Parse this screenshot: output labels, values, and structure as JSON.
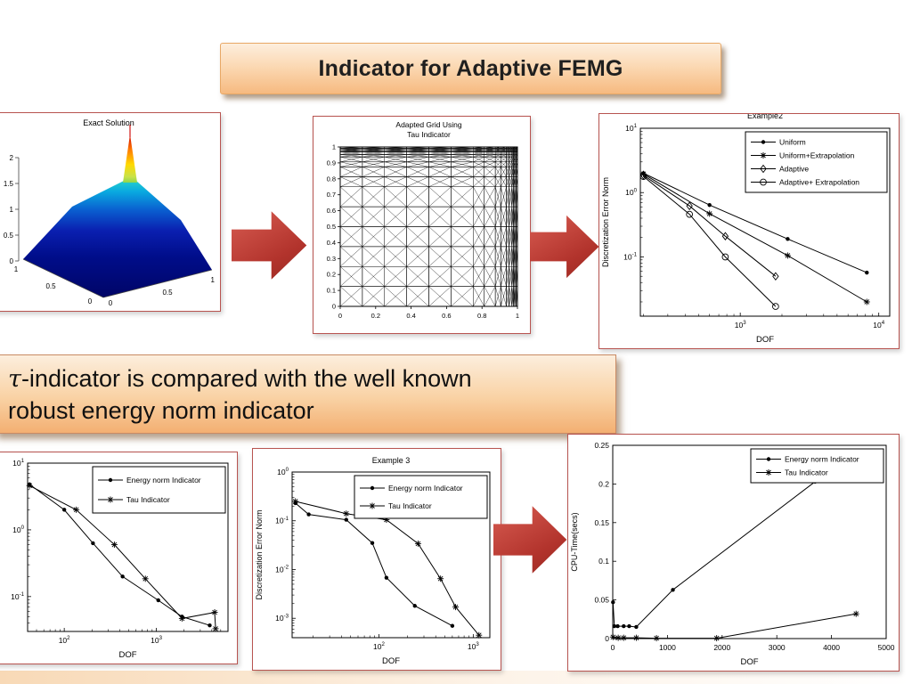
{
  "header": {
    "title": "Indicator for Adaptive FEMG"
  },
  "caption": {
    "tau": "τ",
    "line1_rest": "-indicator is compared with the well known",
    "line2": "robust energy norm indicator"
  },
  "colors": {
    "arrow_red": "#b2332c",
    "panel_border": "#b85450",
    "banner_gradient_top": "#fdeedd",
    "banner_gradient_bottom": "#f6ba80",
    "plot_line": "#000000",
    "surface_low": "#000566",
    "surface_peak": "#cc0000"
  },
  "chart_data": [
    {
      "id": "exact_solution",
      "type": "surface",
      "title": "Exact Solution",
      "zticks": [
        "0",
        "0.5",
        "1",
        "1.5",
        "2"
      ],
      "left_edge_ticks": [
        "1",
        "0.5",
        "0"
      ],
      "right_edge_ticks": [
        "0",
        "0.5",
        "1"
      ],
      "zlim": [
        0,
        2
      ],
      "description": "3D surface over unit square, flat near zero with sharp corner-singularity spike rising to 2"
    },
    {
      "id": "adapted_grid",
      "type": "mesh",
      "title_line1": "Adapted Grid Using",
      "title_line2": "Tau Indicator",
      "xticks": [
        "0",
        "0.2",
        "0.4",
        "0.6",
        "0.8",
        "1"
      ],
      "yticks": [
        "0",
        "0.1",
        "0.2",
        "0.3",
        "0.4",
        "0.5",
        "0.6",
        "0.7",
        "0.8",
        "0.9",
        "1"
      ],
      "refinement": "criss-cross triangular mesh graded strongly toward the top-right corner"
    },
    {
      "id": "example2",
      "type": "line",
      "title": "Example2",
      "title_clipped": true,
      "xlabel": "DOF",
      "ylabel": "Discretization Error Norm",
      "xscale": "log",
      "yscale": "log",
      "xlim": [
        190,
        12000
      ],
      "ylim": [
        0.012,
        10
      ],
      "xticks": {
        "values": [
          1000,
          10000
        ],
        "labels": [
          "10^3",
          "10^4"
        ]
      },
      "yticks": {
        "values": [
          10,
          1,
          0.1
        ],
        "labels": [
          "10^1",
          "10^0",
          "10^-1"
        ]
      },
      "legend": {
        "position": "top-right",
        "entry_h": 15
      },
      "series": [
        {
          "name": "Uniform",
          "marker": "dot",
          "x": [
            200,
            600,
            2200,
            8200
          ],
          "y": [
            2.0,
            0.64,
            0.19,
            0.057
          ]
        },
        {
          "name": "Uniform+Extrapolation",
          "marker": "asterisk",
          "x": [
            200,
            600,
            2200,
            8200
          ],
          "y": [
            1.95,
            0.47,
            0.105,
            0.02
          ]
        },
        {
          "name": "Adaptive",
          "marker": "diamond",
          "x": [
            200,
            430,
            780,
            1800
          ],
          "y": [
            1.85,
            0.62,
            0.21,
            0.05
          ]
        },
        {
          "name": "Adaptive+ Extrapolation",
          "marker": "circle",
          "x": [
            200,
            430,
            780,
            1800
          ],
          "y": [
            1.78,
            0.46,
            0.1,
            0.017
          ]
        }
      ]
    },
    {
      "id": "energy_vs_tau",
      "type": "line",
      "xlabel": "DOF",
      "ylabel": "Discretization Error Norm",
      "xscale": "log",
      "yscale": "log",
      "xlim": [
        40,
        6000
      ],
      "ylim": [
        0.03,
        10
      ],
      "xticks": {
        "values": [
          100,
          1000
        ],
        "labels": [
          "10^2",
          "10^3"
        ]
      },
      "yticks": {
        "values": [
          10,
          1,
          0.1
        ],
        "labels": [
          "10^1",
          "10^0",
          "10^-1"
        ]
      },
      "legend": {
        "position": "top-right",
        "entry_h": 22
      },
      "series": [
        {
          "name": "Energy norm Indicator",
          "marker": "dot",
          "x": [
            42,
            100,
            205,
            430,
            1050,
            1900,
            3800
          ],
          "y": [
            4.8,
            2.0,
            0.63,
            0.2,
            0.088,
            0.05,
            0.037
          ]
        },
        {
          "name": "Tau Indicator",
          "marker": "asterisk",
          "x": [
            42,
            135,
            350,
            760,
            1900,
            4300,
            4400
          ],
          "y": [
            4.6,
            2.0,
            0.6,
            0.185,
            0.047,
            0.058,
            0.033
          ]
        }
      ]
    },
    {
      "id": "example3",
      "type": "line",
      "title": "Example 3",
      "xlabel": "DOF",
      "ylabel": "Discretization Error Norm",
      "xscale": "log",
      "yscale": "log",
      "xlim": [
        12,
        1500
      ],
      "ylim": [
        0.0004,
        1
      ],
      "xticks": {
        "values": [
          100,
          1000
        ],
        "labels": [
          "10^2",
          "10^3"
        ]
      },
      "yticks": {
        "values": [
          1,
          0.1,
          0.01,
          0.001
        ],
        "labels": [
          "10^0",
          "10^-1",
          "10^-2",
          "10^-3"
        ]
      },
      "legend": {
        "position": "top-right",
        "entry_h": 20
      },
      "series": [
        {
          "name": "Energy norm Indicator",
          "marker": "dot",
          "x": [
            13,
            18,
            45,
            85,
            120,
            240,
            600
          ],
          "y": [
            0.23,
            0.135,
            0.105,
            0.035,
            0.0068,
            0.0018,
            0.0007
          ]
        },
        {
          "name": "Tau Indicator",
          "marker": "asterisk",
          "x": [
            13,
            45,
            120,
            260,
            450,
            650,
            1150
          ],
          "y": [
            0.25,
            0.14,
            0.105,
            0.034,
            0.0065,
            0.0017,
            0.00045
          ]
        }
      ]
    },
    {
      "id": "cpu_time",
      "type": "line",
      "xlabel": "DOF",
      "ylabel": "CPU-Time(secs)",
      "xscale": "linear",
      "yscale": "linear",
      "xlim": [
        0,
        5000
      ],
      "ylim": [
        0,
        0.25
      ],
      "xticks": {
        "values": [
          0,
          1000,
          2000,
          3000,
          4000,
          5000
        ],
        "labels": [
          "0",
          "1000",
          "2000",
          "3000",
          "4000",
          "5000"
        ]
      },
      "yticks": {
        "values": [
          0,
          0.05,
          0.1,
          0.15,
          0.2,
          0.25
        ],
        "labels": [
          "0",
          "0.05",
          "0.1",
          "0.15",
          "0.2",
          "0.25"
        ]
      },
      "legend": {
        "position": "top-right",
        "entry_h": 15
      },
      "series": [
        {
          "name": "Energy norm Indicator",
          "marker": "dot",
          "x": [
            5,
            30,
            90,
            200,
            300,
            430,
            1100,
            3700
          ],
          "y": [
            0.047,
            0.016,
            0.016,
            0.016,
            0.016,
            0.015,
            0.063,
            0.203
          ]
        },
        {
          "name": "Tau Indicator",
          "marker": "asterisk",
          "x": [
            5,
            100,
            200,
            430,
            800,
            1900,
            4450
          ],
          "y": [
            0.002,
            0.001,
            0.001,
            0.001,
            0.0005,
            0.0005,
            0.032
          ]
        }
      ]
    }
  ]
}
